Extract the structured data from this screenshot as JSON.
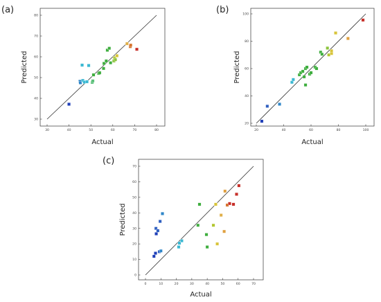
{
  "panels": [
    {
      "label": "(a)",
      "xlabel": "Actual",
      "ylabel": "Predicted"
    },
    {
      "label": "(b)",
      "xlabel": "Actual",
      "ylabel": "Predicted"
    },
    {
      "label": "(c)",
      "xlabel": "Actual",
      "ylabel": "Predicted"
    }
  ],
  "chart_data": [
    {
      "type": "scatter",
      "xlabel": "Actual",
      "ylabel": "Predicted",
      "xlim": [
        30,
        80
      ],
      "ylim": [
        30,
        80
      ],
      "xticks": [
        30,
        40,
        50,
        60,
        70,
        80
      ],
      "yticks": [
        30,
        40,
        50,
        60,
        70,
        80
      ],
      "ticklabels_x": [
        "30",
        "40",
        "50",
        "60",
        "70",
        "80"
      ],
      "ticklabels_y": [
        "30",
        "40",
        "50",
        "60",
        "70",
        "80"
      ],
      "reference_line": "y = x",
      "points": [
        {
          "x": 40.0,
          "y": 37.2,
          "color": "#1f3fb8"
        },
        {
          "x": 45.0,
          "y": 48.2,
          "color": "#2f86c8"
        },
        {
          "x": 45.2,
          "y": 47.5,
          "color": "#2f86c8"
        },
        {
          "x": 46.3,
          "y": 48.6,
          "color": "#3bb8d2"
        },
        {
          "x": 46.0,
          "y": 56.0,
          "color": "#3bb8d2"
        },
        {
          "x": 47.0,
          "y": 47.8,
          "color": "#3bb8d2"
        },
        {
          "x": 48.2,
          "y": 48.0,
          "color": "#3bb8d2"
        },
        {
          "x": 49.0,
          "y": 55.8,
          "color": "#3bb8d2"
        },
        {
          "x": 50.6,
          "y": 47.7,
          "color": "#5cc07a"
        },
        {
          "x": 50.9,
          "y": 48.4,
          "color": "#5cc07a"
        },
        {
          "x": 51.2,
          "y": 51.3,
          "color": "#3fae3f"
        },
        {
          "x": 53.6,
          "y": 52.0,
          "color": "#3fae3f"
        },
        {
          "x": 54.0,
          "y": 52.3,
          "color": "#3fae3f"
        },
        {
          "x": 55.8,
          "y": 54.4,
          "color": "#3fae3f"
        },
        {
          "x": 56.0,
          "y": 56.8,
          "color": "#3fae3f"
        },
        {
          "x": 57.0,
          "y": 58.0,
          "color": "#3fae3f"
        },
        {
          "x": 57.5,
          "y": 63.2,
          "color": "#3fae3f"
        },
        {
          "x": 58.4,
          "y": 64.1,
          "color": "#3fae3f"
        },
        {
          "x": 59.0,
          "y": 57.1,
          "color": "#3fae3f"
        },
        {
          "x": 60.5,
          "y": 58.0,
          "color": "#8cc43c"
        },
        {
          "x": 60.8,
          "y": 59.5,
          "color": "#b3c631"
        },
        {
          "x": 61.2,
          "y": 58.6,
          "color": "#8cc43c"
        },
        {
          "x": 61.9,
          "y": 60.5,
          "color": "#d8c43a"
        },
        {
          "x": 66.5,
          "y": 66.3,
          "color": "#e0b04a"
        },
        {
          "x": 68.0,
          "y": 64.9,
          "color": "#d6732c"
        },
        {
          "x": 68.2,
          "y": 65.6,
          "color": "#d6732c"
        },
        {
          "x": 71.0,
          "y": 63.6,
          "color": "#c7302a"
        }
      ]
    },
    {
      "type": "scatter",
      "xlabel": "Actual",
      "ylabel": "Predicted",
      "xlim": [
        20,
        100
      ],
      "ylim": [
        20,
        100
      ],
      "xticks": [
        20,
        40,
        60,
        80,
        100
      ],
      "yticks": [
        20,
        40,
        60,
        80,
        100
      ],
      "ticklabels_x": [
        "20",
        "40",
        "60",
        "80",
        "100"
      ],
      "ticklabels_y": [
        "20",
        "40",
        "60",
        "80",
        "100"
      ],
      "reference_line": "y = x",
      "points": [
        {
          "x": 24.0,
          "y": 21.5,
          "color": "#1f3fb8"
        },
        {
          "x": 28.0,
          "y": 32.5,
          "color": "#2f5fc0"
        },
        {
          "x": 37.0,
          "y": 34.0,
          "color": "#2f86c8"
        },
        {
          "x": 46.0,
          "y": 50.0,
          "color": "#3bb8d2"
        },
        {
          "x": 47.0,
          "y": 52.0,
          "color": "#3bb8d2"
        },
        {
          "x": 51.5,
          "y": 55.5,
          "color": "#3fae3f"
        },
        {
          "x": 52.5,
          "y": 57.0,
          "color": "#3fae3f"
        },
        {
          "x": 54.0,
          "y": 58.0,
          "color": "#3fae3f"
        },
        {
          "x": 55.0,
          "y": 54.0,
          "color": "#3fae3f"
        },
        {
          "x": 56.0,
          "y": 60.0,
          "color": "#3fae3f"
        },
        {
          "x": 56.0,
          "y": 48.0,
          "color": "#3fae3f"
        },
        {
          "x": 57.0,
          "y": 61.0,
          "color": "#3fae3f"
        },
        {
          "x": 59.0,
          "y": 56.0,
          "color": "#3fae3f"
        },
        {
          "x": 60.0,
          "y": 57.0,
          "color": "#3fae3f"
        },
        {
          "x": 63.0,
          "y": 61.0,
          "color": "#3fae3f"
        },
        {
          "x": 64.0,
          "y": 60.0,
          "color": "#3fae3f"
        },
        {
          "x": 67.0,
          "y": 72.0,
          "color": "#3fae3f"
        },
        {
          "x": 68.0,
          "y": 70.5,
          "color": "#3fae3f"
        },
        {
          "x": 72.0,
          "y": 75.0,
          "color": "#8cc43c"
        },
        {
          "x": 73.0,
          "y": 70.0,
          "color": "#b3c631"
        },
        {
          "x": 75.0,
          "y": 71.0,
          "color": "#d8c43a"
        },
        {
          "x": 75.0,
          "y": 73.0,
          "color": "#d8c43a"
        },
        {
          "x": 78.0,
          "y": 86.0,
          "color": "#d8c43a"
        },
        {
          "x": 87.0,
          "y": 82.0,
          "color": "#e0a040"
        },
        {
          "x": 98.0,
          "y": 95.5,
          "color": "#c7302a"
        }
      ]
    },
    {
      "type": "scatter",
      "xlabel": "Actual",
      "ylabel": "Predicted",
      "xlim": [
        0,
        70
      ],
      "ylim": [
        0,
        70
      ],
      "xticks": [
        0,
        10,
        20,
        30,
        40,
        50,
        60,
        70
      ],
      "yticks": [
        0,
        10,
        20,
        30,
        40,
        50,
        60,
        70
      ],
      "ticklabels_x": [
        "0",
        "10",
        "20",
        "30",
        "40",
        "50",
        "60",
        "70"
      ],
      "ticklabels_y": [
        "0",
        "10",
        "20",
        "30",
        "40",
        "50",
        "60",
        "70"
      ],
      "reference_line": "y = x",
      "points": [
        {
          "x": 5.5,
          "y": 12.0,
          "color": "#1f3fb8"
        },
        {
          "x": 6.5,
          "y": 14.0,
          "color": "#1f3fb8"
        },
        {
          "x": 7.0,
          "y": 26.5,
          "color": "#1f3fb8"
        },
        {
          "x": 6.8,
          "y": 30.0,
          "color": "#2f5fc0"
        },
        {
          "x": 8.0,
          "y": 28.5,
          "color": "#2f5fc0"
        },
        {
          "x": 9.0,
          "y": 15.0,
          "color": "#2f5fc0"
        },
        {
          "x": 9.5,
          "y": 34.5,
          "color": "#2f5fc0"
        },
        {
          "x": 10.0,
          "y": 15.5,
          "color": "#2f86c8"
        },
        {
          "x": 11.0,
          "y": 39.5,
          "color": "#2f86c8"
        },
        {
          "x": 21.5,
          "y": 18.0,
          "color": "#3bb8d2"
        },
        {
          "x": 22.0,
          "y": 20.5,
          "color": "#3bb8d2"
        },
        {
          "x": 23.5,
          "y": 22.0,
          "color": "#3bb8d2"
        },
        {
          "x": 34.0,
          "y": 32.0,
          "color": "#3fae3f"
        },
        {
          "x": 35.0,
          "y": 45.5,
          "color": "#3fae3f"
        },
        {
          "x": 39.5,
          "y": 26.0,
          "color": "#3fae3f"
        },
        {
          "x": 40.0,
          "y": 18.0,
          "color": "#3fae3f"
        },
        {
          "x": 44.0,
          "y": 32.0,
          "color": "#b3c631"
        },
        {
          "x": 45.5,
          "y": 45.5,
          "color": "#d8c43a"
        },
        {
          "x": 46.5,
          "y": 20.0,
          "color": "#d8c43a"
        },
        {
          "x": 49.0,
          "y": 38.5,
          "color": "#e0b04a"
        },
        {
          "x": 51.0,
          "y": 28.0,
          "color": "#e0a040"
        },
        {
          "x": 51.5,
          "y": 54.0,
          "color": "#e0a040"
        },
        {
          "x": 53.0,
          "y": 45.0,
          "color": "#d6732c"
        },
        {
          "x": 54.5,
          "y": 46.0,
          "color": "#c7302a"
        },
        {
          "x": 57.0,
          "y": 45.5,
          "color": "#c7302a"
        },
        {
          "x": 59.0,
          "y": 52.0,
          "color": "#c7302a"
        },
        {
          "x": 60.5,
          "y": 57.5,
          "color": "#c7302a"
        }
      ]
    }
  ]
}
